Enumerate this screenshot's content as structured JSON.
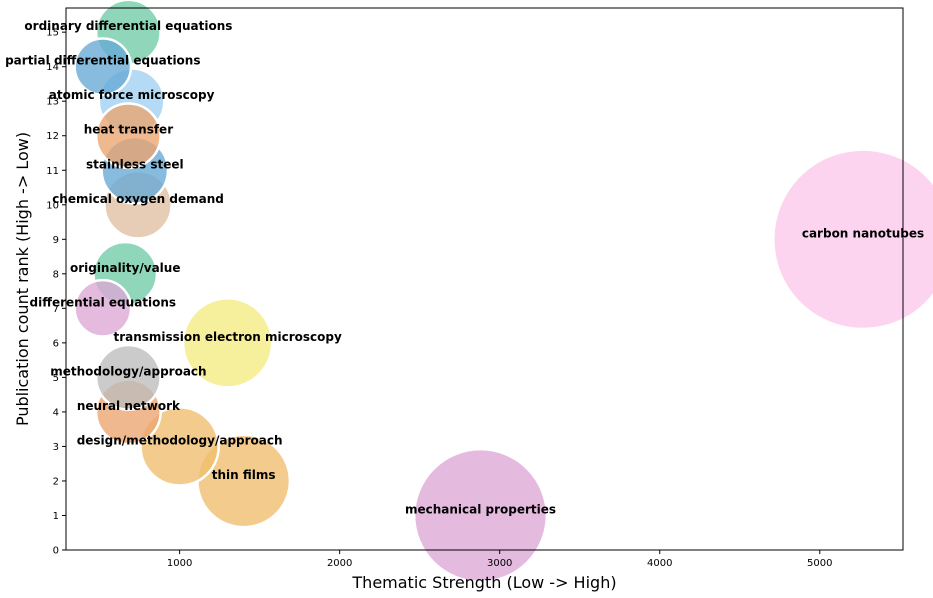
{
  "chart_data": {
    "type": "scatter",
    "title": "",
    "xlabel": "Thematic Strength (Low -> High)",
    "ylabel": "Publication count rank (High -> Low)",
    "xlim": [
      290,
      5520
    ],
    "ylim": [
      0,
      15.7
    ],
    "xticks": [
      1000,
      2000,
      3000,
      4000,
      5000
    ],
    "yticks": [
      0,
      1,
      2,
      3,
      4,
      5,
      6,
      7,
      8,
      9,
      10,
      11,
      12,
      13,
      14,
      15
    ],
    "grid": false,
    "points": [
      {
        "label": "mechanical properties",
        "x": 2880,
        "y": 1,
        "size": 2880,
        "color": "#dda8d6"
      },
      {
        "label": "thin films",
        "x": 1400,
        "y": 2,
        "size": 1400,
        "color": "#efbe6d"
      },
      {
        "label": "design/methodology/approach",
        "x": 1000,
        "y": 3,
        "size": 1000,
        "color": "#efbe6d"
      },
      {
        "label": "neural network",
        "x": 680,
        "y": 4,
        "size": 680,
        "color": "#eba46e"
      },
      {
        "label": "methodology/approach",
        "x": 680,
        "y": 5,
        "size": 680,
        "color": "#bdbdbd"
      },
      {
        "label": "transmission electron microscopy",
        "x": 1300,
        "y": 6,
        "size": 1300,
        "color": "#f4ec80"
      },
      {
        "label": "differential equations",
        "x": 520,
        "y": 7,
        "size": 520,
        "color": "#dda8d6"
      },
      {
        "label": "originality/value",
        "x": 660,
        "y": 8,
        "size": 660,
        "color": "#70cba6"
      },
      {
        "label": "carbon nanotubes",
        "x": 5270,
        "y": 9,
        "size": 5270,
        "color": "#fcc8ea"
      },
      {
        "label": "chemical oxygen demand",
        "x": 740,
        "y": 10,
        "size": 740,
        "color": "#e1bfa2"
      },
      {
        "label": "stainless steel",
        "x": 720,
        "y": 11,
        "size": 720,
        "color": "#65a9d6"
      },
      {
        "label": "heat transfer",
        "x": 680,
        "y": 12,
        "size": 680,
        "color": "#eba46e"
      },
      {
        "label": "atomic force microscopy",
        "x": 700,
        "y": 13,
        "size": 700,
        "color": "#9fd0f2"
      },
      {
        "label": "partial differential equations",
        "x": 520,
        "y": 14,
        "size": 520,
        "color": "#65a9d6"
      },
      {
        "label": "ordinary differential equations",
        "x": 680,
        "y": 15,
        "size": 680,
        "color": "#70cba6"
      }
    ]
  }
}
